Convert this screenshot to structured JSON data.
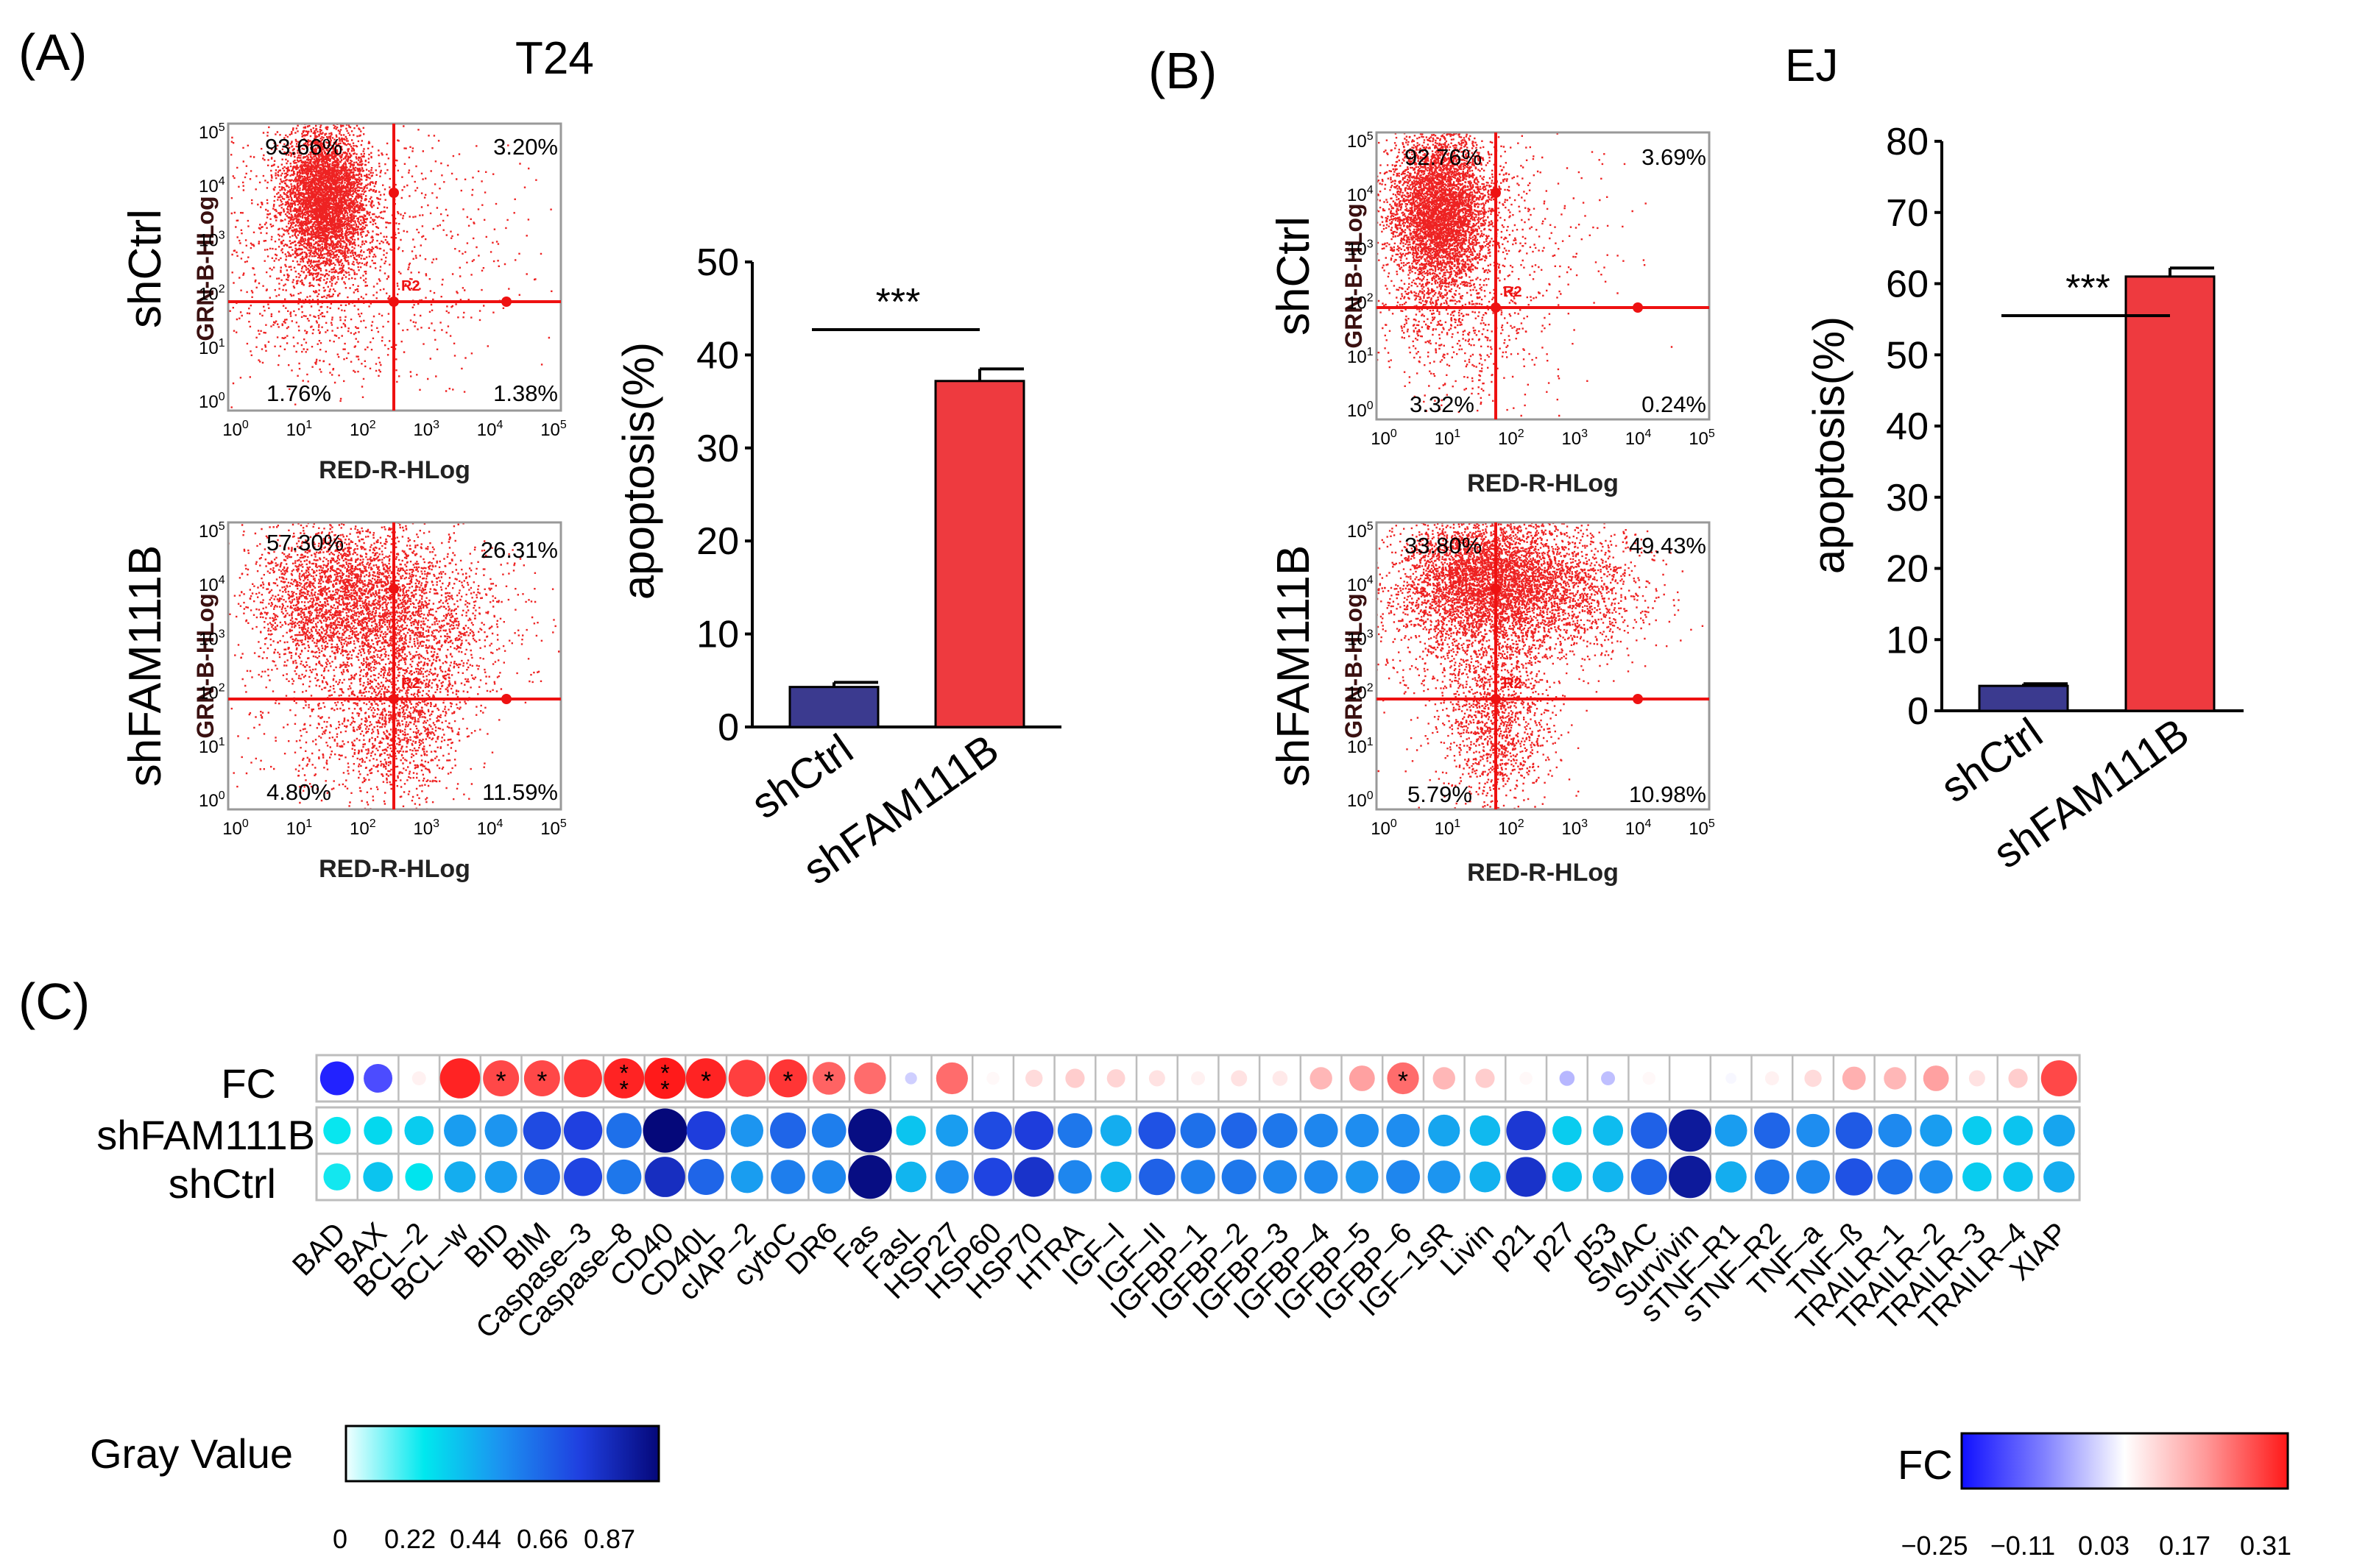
{
  "panel_labels": {
    "a": "(A)",
    "b": "(B)",
    "c": "(C)"
  },
  "colors": {
    "bar_ctrl": "#3b3a8f",
    "bar_fam": "#ee3a3f",
    "flow_points": "#ee2222",
    "flow_lines": "#ee1111",
    "grid": "#bdbdbd",
    "gray_scale": [
      "#e8ffff",
      "#00e5ee",
      "#1e8ff0",
      "#1f3fe0",
      "#05087a"
    ],
    "fc_scale": [
      "#1a1aff",
      "#8f8fff",
      "#ffffff",
      "#ff9a9a",
      "#ff1a1a"
    ]
  },
  "flow_axis": {
    "x_label": "RED-R-HLog",
    "y_label": "GRN-B-HLog",
    "tick_base": "10",
    "tick_exps": [
      "0",
      "1",
      "2",
      "3",
      "4",
      "5"
    ],
    "gate_label": "R2"
  },
  "flow_plots": [
    {
      "cell_line": "T24",
      "condition": "shCtrl",
      "q_ul": "93.66%",
      "q_ur": "3.20%",
      "q_ll": "1.76%",
      "q_lr": "1.38%"
    },
    {
      "cell_line": "T24",
      "condition": "shFAM111B",
      "q_ul": "57.30%",
      "q_ur": "26.31%",
      "q_ll": "4.80%",
      "q_lr": "11.59%"
    },
    {
      "cell_line": "EJ",
      "condition": "shCtrl",
      "q_ul": "92.76%",
      "q_ur": "3.69%",
      "q_ll": "3.32%",
      "q_lr": "0.24%"
    },
    {
      "cell_line": "EJ",
      "condition": "shFAM111B",
      "q_ul": "33.80%",
      "q_ur": "49.43%",
      "q_ll": "5.79%",
      "q_lr": "10.98%"
    }
  ],
  "chart_data": [
    {
      "type": "bar",
      "title": "T24",
      "categories": [
        "shCtrl",
        "shFAM111B"
      ],
      "values": [
        4.3,
        37.2
      ],
      "errors": [
        0.5,
        1.3
      ],
      "ylabel": "apoptosis(%)",
      "xlabel": "",
      "ylim": [
        0,
        50
      ],
      "yticks": [
        0,
        10,
        20,
        30,
        40,
        50
      ],
      "significance": "***"
    },
    {
      "type": "bar",
      "title": "EJ",
      "categories": [
        "shCtrl",
        "shFAM111B"
      ],
      "values": [
        3.5,
        61.0
      ],
      "errors": [
        0.3,
        1.2
      ],
      "ylabel": "apoptosis(%)",
      "xlabel": "",
      "ylim": [
        0,
        80
      ],
      "yticks": [
        0,
        10,
        20,
        30,
        40,
        50,
        60,
        70,
        80
      ],
      "significance": "***"
    },
    {
      "type": "heatmap",
      "title": "",
      "rows": [
        "FC",
        "shFAM111B",
        "shCtrl"
      ],
      "columns": [
        "BAD",
        "BAX",
        "BCL–2",
        "BCL–w",
        "BID",
        "BIM",
        "Caspase–3",
        "Caspase–8",
        "CD40",
        "CD40L",
        "cIAP–2",
        "cytoC",
        "DR6",
        "Fas",
        "FasL",
        "HSP27",
        "HSP60",
        "HSP70",
        "HTRA",
        "IGF–I",
        "IGF–II",
        "IGFBP–1",
        "IGFBP–2",
        "IGFBP–3",
        "IGFBP–4",
        "IGFBP–5",
        "IGFBP–6",
        "IGF–1sR",
        "Livin",
        "p21",
        "p27",
        "p53",
        "SMAC",
        "Survivin",
        "sTNF–R1",
        "sTNF–R2",
        "TNF–a",
        "TNF–ß",
        "TRAILR–1",
        "TRAILR–2",
        "TRAILR–3",
        "TRAILR–4",
        "XIAP"
      ],
      "fc": [
        -0.24,
        -0.19,
        0.05,
        0.3,
        0.26,
        0.26,
        0.28,
        0.3,
        0.31,
        0.3,
        0.27,
        0.28,
        0.23,
        0.22,
        -0.03,
        0.22,
        0.04,
        0.08,
        0.1,
        0.09,
        0.07,
        0.05,
        0.07,
        0.06,
        0.13,
        0.16,
        0.22,
        0.13,
        0.1,
        0.04,
        -0.06,
        -0.05,
        0.04,
        0.03,
        0.02,
        0.05,
        0.08,
        0.14,
        0.13,
        0.16,
        0.07,
        0.1,
        0.26
      ],
      "fc_stars": [
        "",
        "",
        "",
        "",
        "*",
        "*",
        "",
        "**",
        "**",
        "*",
        "",
        "*",
        "*",
        "",
        "",
        "",
        "",
        "",
        "",
        "",
        "",
        "",
        "",
        "",
        "",
        "",
        "*",
        "",
        "",
        "",
        "",
        "",
        "",
        "",
        "",
        "",
        "",
        "",
        "",
        "",
        "",
        "",
        ""
      ],
      "sh_fam111b": [
        0.21,
        0.25,
        0.28,
        0.4,
        0.42,
        0.62,
        0.65,
        0.52,
        0.87,
        0.66,
        0.42,
        0.55,
        0.48,
        0.85,
        0.3,
        0.4,
        0.62,
        0.66,
        0.5,
        0.36,
        0.6,
        0.52,
        0.55,
        0.5,
        0.46,
        0.44,
        0.44,
        0.38,
        0.33,
        0.68,
        0.28,
        0.32,
        0.56,
        0.8,
        0.4,
        0.55,
        0.44,
        0.58,
        0.45,
        0.4,
        0.28,
        0.3,
        0.38
      ],
      "sh_ctrl": [
        0.2,
        0.3,
        0.22,
        0.36,
        0.4,
        0.55,
        0.64,
        0.5,
        0.72,
        0.55,
        0.4,
        0.48,
        0.46,
        0.85,
        0.34,
        0.44,
        0.64,
        0.7,
        0.46,
        0.34,
        0.56,
        0.48,
        0.5,
        0.46,
        0.45,
        0.42,
        0.46,
        0.42,
        0.35,
        0.7,
        0.3,
        0.34,
        0.55,
        0.8,
        0.36,
        0.5,
        0.46,
        0.6,
        0.52,
        0.44,
        0.28,
        0.3,
        0.36
      ],
      "gray_legend": {
        "label": "Gray Value",
        "ticks": [
          "0",
          "0.22",
          "0.44",
          "0.66",
          "0.87"
        ],
        "range": [
          0,
          0.87
        ]
      },
      "fc_legend": {
        "label": "FC",
        "ticks": [
          "−0.25",
          "−0.11",
          "0.03",
          "0.17",
          "0.31"
        ],
        "range": [
          -0.25,
          0.31
        ]
      }
    }
  ]
}
